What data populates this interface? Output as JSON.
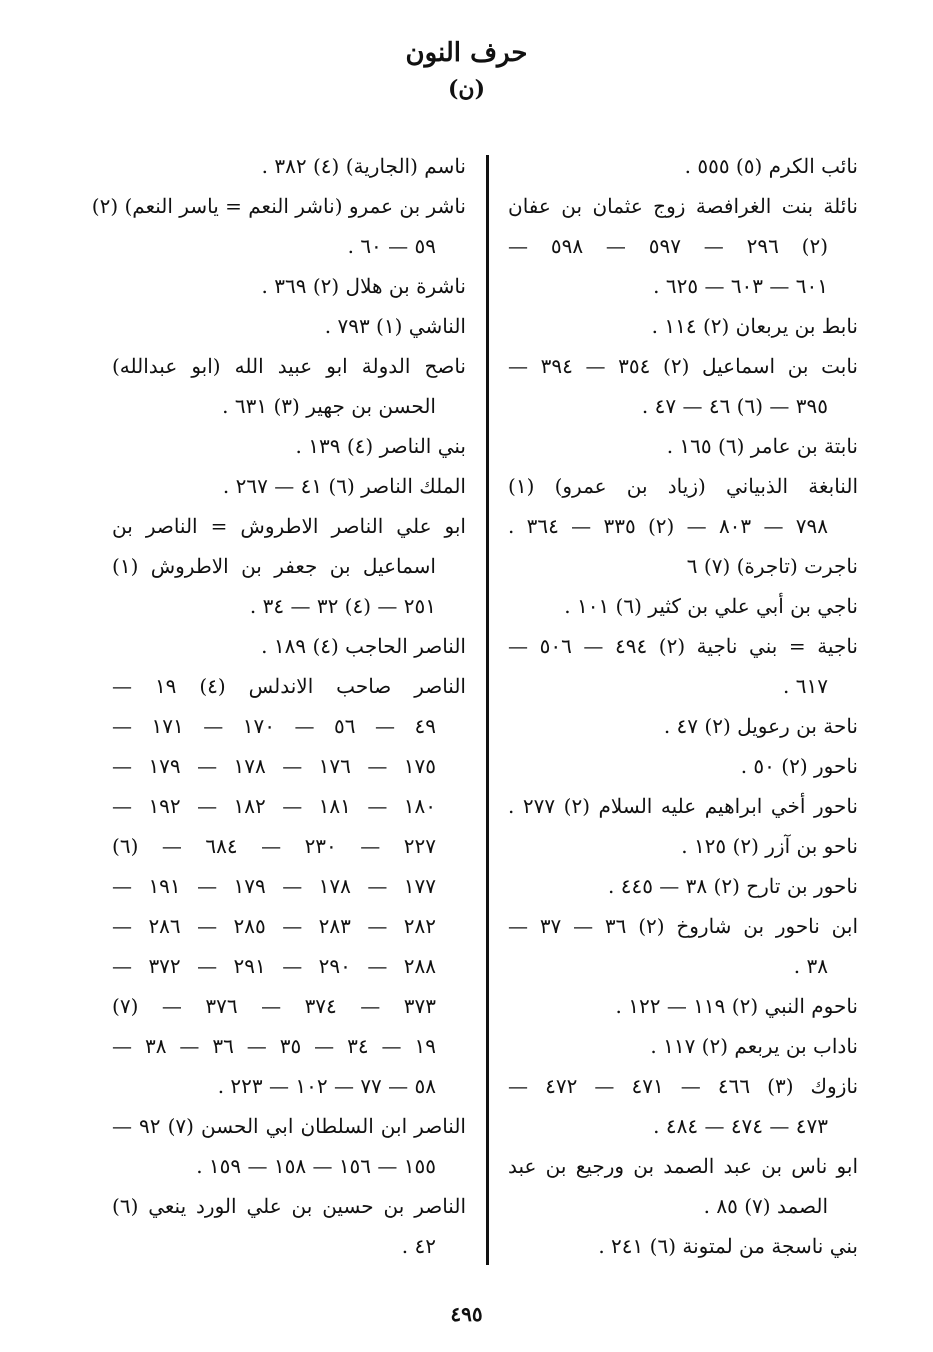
{
  "header": {
    "title": "حرف النون",
    "letter": "(ن)"
  },
  "right_column": [
    {
      "text": "نائب الكرم (٥) ٥٥٥ .",
      "indent": false,
      "short": true
    },
    {
      "text": "نائلة بنت الغرافصة زوج عثمان بن عفان",
      "indent": false,
      "short": false
    },
    {
      "text": "(٢) ٢٩٦ — ٥٩٧ — ٥٩٨ —",
      "indent": true,
      "short": false
    },
    {
      "text": "٦٠١ — ٦٠٣ — ٦٢٥ .",
      "indent": true,
      "short": true
    },
    {
      "text": "نابط بن يربعان (٢) ١١٤ .",
      "indent": false,
      "short": true
    },
    {
      "text": "نابت بن اسماعيل (٢) ٣٥٤ — ٣٩٤ —",
      "indent": false,
      "short": false
    },
    {
      "text": "٣٩٥ — (٦) ٤٦ — ٤٧ .",
      "indent": true,
      "short": true
    },
    {
      "text": "نابتة بن عامر (٦) ١٦٥ .",
      "indent": false,
      "short": true
    },
    {
      "text": "النابغة الذبياني (زياد بن عمرو) (١)",
      "indent": false,
      "short": false
    },
    {
      "text": "٧٩٨ — ٨٠٣ — (٢) ٣٣٥ — ٣٦٤ .",
      "indent": true,
      "short": false
    },
    {
      "text": "ناجرت (تاجرة) (٧) ٦",
      "indent": false,
      "short": true
    },
    {
      "text": "ناجي بن أبي علي بن كثير (٦) ١٠١ .",
      "indent": false,
      "short": true
    },
    {
      "text": "ناجية = بني ناجية (٢) ٤٩٤ — ٥٠٦ —",
      "indent": false,
      "short": false
    },
    {
      "text": "٦١٧ .",
      "indent": true,
      "short": true
    },
    {
      "text": "ناحة بن رعويل (٢) ٤٧ .",
      "indent": false,
      "short": true
    },
    {
      "text": "ناحور (٢) ٥٠ .",
      "indent": false,
      "short": true
    },
    {
      "text": "ناحور أخي ابراهيم عليه السلام (٢) ٢٧٧ .",
      "indent": false,
      "short": false
    },
    {
      "text": "ناحو بن آزر (٢) ١٢٥ .",
      "indent": false,
      "short": true
    },
    {
      "text": "ناحور بن تارح (٢) ٣٨ — ٤٤٥ .",
      "indent": false,
      "short": true
    },
    {
      "text": "ابن ناحور بن شاروخ (٢) ٣٦ — ٣٧ —",
      "indent": false,
      "short": false
    },
    {
      "text": "٣٨ .",
      "indent": true,
      "short": true
    },
    {
      "text": "ناحوم النبي (٢) ١١٩ — ١٢٢ .",
      "indent": false,
      "short": true
    },
    {
      "text": "ناداب بن يربعم (٢) ١١٧ .",
      "indent": false,
      "short": true
    },
    {
      "text": "نازوك (٣) ٤٦٦ — ٤٧١ — ٤٧٢ —",
      "indent": false,
      "short": false
    },
    {
      "text": "٤٧٣ — ٤٧٤ — ٤٨٤ .",
      "indent": true,
      "short": true
    },
    {
      "text": "ابو ناس بن عبد الصمد بن ورجيع بن عبد",
      "indent": false,
      "short": false
    },
    {
      "text": "الصمد (٧) ٨٥ .",
      "indent": true,
      "short": true
    },
    {
      "text": "بني ناسجة من لمتونة (٦) ٢٤١ .",
      "indent": false,
      "short": true
    }
  ],
  "left_column": [
    {
      "text": "ناسم (الجارية) (٤) ٣٨٢ .",
      "indent": false,
      "short": true
    },
    {
      "text": "ناشر بن عمرو (ناشر النعم = ياسر النعم) (٢)",
      "indent": false,
      "short": false
    },
    {
      "text": "٥٩ — ٦٠ .",
      "indent": true,
      "short": true
    },
    {
      "text": "ناشرة بن هلال (٢) ٣٦٩ .",
      "indent": false,
      "short": true
    },
    {
      "text": "الناشي (١) ٧٩٣ .",
      "indent": false,
      "short": true
    },
    {
      "text": "ناصح الدولة ابو عبيد الله (ابو عبدالله)",
      "indent": false,
      "short": false
    },
    {
      "text": "الحسن بن جهير (٣) ٦٣١ .",
      "indent": true,
      "short": true
    },
    {
      "text": "بني الناصر (٤) ١٣٩ .",
      "indent": false,
      "short": true
    },
    {
      "text": "الملك الناصر (٦) ٤١ — ٢٦٧ .",
      "indent": false,
      "short": true
    },
    {
      "text": "ابو علي الناصر الاطروش = الناصر بن",
      "indent": false,
      "short": false
    },
    {
      "text": "اسماعيل بن جعفر بن الاطروش (١)",
      "indent": true,
      "short": false
    },
    {
      "text": "٢٥١ — (٤) ٣٢ — ٣٤ .",
      "indent": true,
      "short": true
    },
    {
      "text": "الناصر الحاجب (٤) ١٨٩ .",
      "indent": false,
      "short": true
    },
    {
      "text": "الناصر صاحب الاندلس (٤) ١٩ —",
      "indent": false,
      "short": false
    },
    {
      "text": "٤٩ — ٥٦ — ١٧٠ — ١٧١ —",
      "indent": true,
      "short": false
    },
    {
      "text": "١٧٥ — ١٧٦ — ١٧٨ — ١٧٩ —",
      "indent": true,
      "short": false
    },
    {
      "text": "١٨٠ — ١٨١ — ١٨٢ — ١٩٢ —",
      "indent": true,
      "short": false
    },
    {
      "text": "٢٢٧ — ٢٣٠ — ٦٨٤ — (٦)",
      "indent": true,
      "short": false
    },
    {
      "text": "١٧٧ — ١٧٨ — ١٧٩ — ١٩١ —",
      "indent": true,
      "short": false
    },
    {
      "text": "٢٨٢ — ٢٨٣ — ٢٨٥ — ٢٨٦ —",
      "indent": true,
      "short": false
    },
    {
      "text": "٢٨٨ — ٢٩٠ — ٢٩١ — ٣٧٢ —",
      "indent": true,
      "short": false
    },
    {
      "text": "٣٧٣ — ٣٧٤ — ٣٧٦ — (٧)",
      "indent": true,
      "short": false
    },
    {
      "text": "١٩ — ٣٤ — ٣٥ — ٣٦ — ٣٨ —",
      "indent": true,
      "short": false
    },
    {
      "text": "٥٨ — ٧٧ — ١٠٢ — ٢٢٣ .",
      "indent": true,
      "short": true
    },
    {
      "text": "الناصر ابن السلطان ابي الحسن (٧) ٩٢ —",
      "indent": false,
      "short": false
    },
    {
      "text": "١٥٥ — ١٥٦ — ١٥٨ — ١٥٩ .",
      "indent": true,
      "short": true
    },
    {
      "text": "الناصر بن حسين بن علي الورد ينعي (٦)",
      "indent": false,
      "short": false
    },
    {
      "text": "٤٢ .",
      "indent": true,
      "short": true
    }
  ],
  "footer": {
    "page_number": "٤٩٥"
  }
}
